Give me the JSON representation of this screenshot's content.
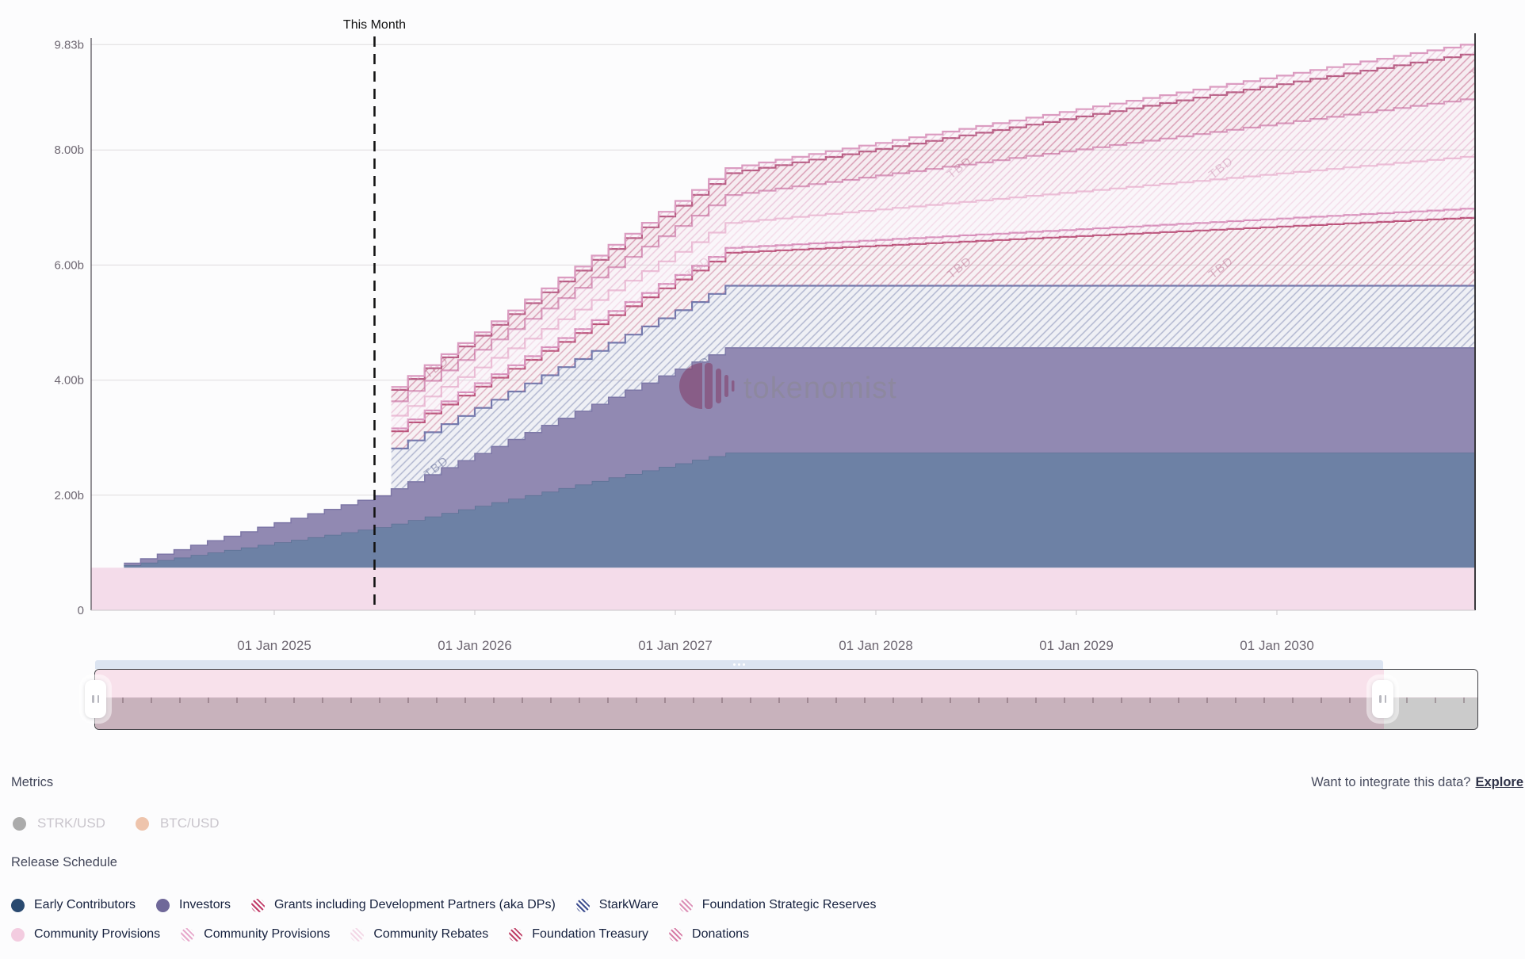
{
  "chart": {
    "this_month_label": "This Month",
    "watermark_text": "tokenomist",
    "tbd_label": "TBD",
    "y_axis": {
      "tick_labels": [
        "9.83b",
        "8.00b",
        "6.00b",
        "4.00b",
        "2.00b",
        "0"
      ],
      "tick_values": [
        9.83,
        8,
        6,
        4,
        2,
        0
      ]
    },
    "x_axis": {
      "tick_labels": [
        "01 Jan 2025",
        "01 Jan 2026",
        "01 Jan 2027",
        "01 Jan 2028",
        "01 Jan 2029",
        "01 Jan 2030"
      ]
    }
  },
  "chart_data": {
    "type": "area",
    "subtype": "stacked-step-area",
    "unit": "tokens (billions)",
    "bar_interval": "monthly",
    "x_start_month": "2024-04",
    "x_months": 81,
    "this_month_index": 15,
    "tbd_start_index": 16,
    "ylim": [
      0,
      9.83
    ],
    "x_tick_month_indices": [
      9,
      21,
      33,
      45,
      57,
      69
    ],
    "series": [
      {
        "name": "Community Provisions",
        "style": "solid",
        "color": "#f4dcea",
        "full_width": true,
        "constant_value": 0.74
      },
      {
        "name": "Early Contributors",
        "style": "solid",
        "color": "#6d81a5",
        "top_border_color": "#5d7195",
        "values": [
          0.044,
          0.088,
          0.132,
          0.176,
          0.22,
          0.264,
          0.308,
          0.352,
          0.396,
          0.44,
          0.484,
          0.528,
          0.572,
          0.616,
          0.66,
          0.704,
          0.766,
          0.827,
          0.889,
          0.951,
          1.013,
          1.074,
          1.136,
          1.198,
          1.259,
          1.321,
          1.383,
          1.444,
          1.506,
          1.568,
          1.629,
          1.691,
          1.753,
          1.814,
          1.876,
          1.938,
          2.0
        ]
      },
      {
        "name": "Investors",
        "style": "solid",
        "color": "#9189b2",
        "top_border_color": "#7d76a6",
        "values": [
          0.034,
          0.068,
          0.102,
          0.136,
          0.17,
          0.204,
          0.238,
          0.272,
          0.306,
          0.34,
          0.374,
          0.408,
          0.442,
          0.476,
          0.51,
          0.544,
          0.605,
          0.666,
          0.726,
          0.787,
          0.848,
          0.909,
          0.97,
          1.03,
          1.091,
          1.152,
          1.213,
          1.274,
          1.334,
          1.395,
          1.456,
          1.517,
          1.578,
          1.638,
          1.699,
          1.76,
          1.82
        ]
      },
      {
        "name": "StarkWare",
        "style": "hatched",
        "start_index": 16,
        "line_color": "rgba(127,136,178,0.55)",
        "bg_color": "rgba(127,136,178,0.10)",
        "top_border_color": "#7079ae",
        "tbd_text_color": "rgba(98,108,150,0.55)",
        "values": [
          0.7,
          0.719,
          0.738,
          0.757,
          0.776,
          0.795,
          0.814,
          0.833,
          0.852,
          0.871,
          0.89,
          0.909,
          0.928,
          0.947,
          0.966,
          0.985,
          1.004,
          1.023,
          1.042,
          1.061,
          1.08
        ]
      },
      {
        "name": "Grants including Development Partners (aka DPs)",
        "style": "hatched",
        "start_index": 16,
        "line_color": "rgba(197,111,144,0.50)",
        "bg_color": "rgba(197,111,144,0.08)",
        "top_border_color": "#bb537a",
        "tbd_text_color": "rgba(190,120,150,0.50)",
        "values": [
          0.3,
          0.314,
          0.328,
          0.341,
          0.355,
          0.369,
          0.383,
          0.396,
          0.41,
          0.424,
          0.438,
          0.451,
          0.465,
          0.479,
          0.493,
          0.506,
          0.52,
          0.534,
          0.548,
          0.561,
          0.575,
          0.589,
          0.603,
          0.616,
          0.63,
          0.644,
          0.658,
          0.671,
          0.685,
          0.699,
          0.713,
          0.726,
          0.74,
          0.754,
          0.768,
          0.781,
          0.795,
          0.809,
          0.823,
          0.836,
          0.85,
          0.864,
          0.878,
          0.891,
          0.905,
          0.919,
          0.933,
          0.946,
          0.96,
          0.974,
          0.988,
          1.001,
          1.015,
          1.029,
          1.043,
          1.056,
          1.07,
          1.084,
          1.098,
          1.111,
          1.125,
          1.139,
          1.153,
          1.166,
          1.18
        ]
      },
      {
        "name": "Community Provisions",
        "style": "hatched",
        "start_index": 16,
        "line_color": "rgba(222,155,195,0.50)",
        "bg_color": "rgba(222,155,195,0.08)",
        "top_border_color": "#d78fba",
        "tbd_text_color": "rgba(205,140,175,0.45)",
        "values": [
          0.05,
          0.052,
          0.053,
          0.055,
          0.057,
          0.059,
          0.06,
          0.062,
          0.064,
          0.065,
          0.067,
          0.069,
          0.07,
          0.072,
          0.074,
          0.076,
          0.077,
          0.079,
          0.081,
          0.082,
          0.084,
          0.086,
          0.087,
          0.089,
          0.091,
          0.093,
          0.094,
          0.096,
          0.098,
          0.099,
          0.101,
          0.103,
          0.104,
          0.106,
          0.108,
          0.11,
          0.111,
          0.113,
          0.115,
          0.116,
          0.118,
          0.12,
          0.121,
          0.123,
          0.125,
          0.127,
          0.128,
          0.13,
          0.132,
          0.133,
          0.135,
          0.137,
          0.138,
          0.14,
          0.142,
          0.144,
          0.145,
          0.147,
          0.149,
          0.15,
          0.152,
          0.154,
          0.155,
          0.157,
          0.159
        ]
      },
      {
        "name": "Community Rebates",
        "style": "hatched",
        "start_index": 16,
        "line_color": "rgba(238,200,221,0.55)",
        "bg_color": "rgba(238,200,221,0.10)",
        "top_border_color": "#ecc0d8",
        "tbd_text_color": "rgba(215,165,190,0.40)",
        "values": [
          0.22,
          0.231,
          0.241,
          0.252,
          0.263,
          0.273,
          0.284,
          0.294,
          0.305,
          0.316,
          0.326,
          0.337,
          0.348,
          0.358,
          0.369,
          0.379,
          0.39,
          0.401,
          0.411,
          0.422,
          0.433,
          0.443,
          0.454,
          0.464,
          0.475,
          0.486,
          0.496,
          0.507,
          0.518,
          0.528,
          0.539,
          0.549,
          0.56,
          0.571,
          0.581,
          0.592,
          0.603,
          0.613,
          0.624,
          0.634,
          0.645,
          0.656,
          0.666,
          0.677,
          0.688,
          0.698,
          0.709,
          0.719,
          0.73,
          0.741,
          0.751,
          0.762,
          0.773,
          0.783,
          0.794,
          0.804,
          0.815,
          0.826,
          0.836,
          0.847,
          0.858,
          0.868,
          0.879,
          0.889,
          0.9
        ]
      },
      {
        "name": "Foundation Strategic Reserves",
        "style": "hatched",
        "start_index": 16,
        "line_color": "rgba(224,162,196,0.50)",
        "bg_color": "rgba(224,162,196,0.10)",
        "top_border_color": "#d99cbf",
        "tbd_text_color": "rgba(200,135,170,0.45)",
        "values": [
          0.25,
          0.262,
          0.273,
          0.285,
          0.297,
          0.309,
          0.32,
          0.332,
          0.344,
          0.355,
          0.367,
          0.379,
          0.391,
          0.402,
          0.414,
          0.426,
          0.438,
          0.449,
          0.461,
          0.473,
          0.484,
          0.496,
          0.508,
          0.52,
          0.531,
          0.543,
          0.555,
          0.566,
          0.578,
          0.59,
          0.602,
          0.613,
          0.625,
          0.637,
          0.648,
          0.66,
          0.672,
          0.684,
          0.695,
          0.707,
          0.719,
          0.73,
          0.742,
          0.754,
          0.766,
          0.777,
          0.789,
          0.801,
          0.813,
          0.824,
          0.836,
          0.848,
          0.859,
          0.871,
          0.883,
          0.895,
          0.906,
          0.918,
          0.93,
          0.941,
          0.953,
          0.965,
          0.977,
          0.988,
          1.0
        ]
      },
      {
        "name": "Foundation Treasury",
        "style": "hatched",
        "start_index": 16,
        "line_color": "rgba(193,95,133,0.55)",
        "bg_color": "rgba(193,95,133,0.10)",
        "top_border_color": "#b75c83",
        "tbd_text_color": "rgba(185,110,140,0.50)",
        "values": [
          0.2,
          0.209,
          0.218,
          0.227,
          0.236,
          0.245,
          0.254,
          0.263,
          0.273,
          0.282,
          0.291,
          0.3,
          0.309,
          0.318,
          0.327,
          0.336,
          0.345,
          0.354,
          0.363,
          0.372,
          0.381,
          0.39,
          0.399,
          0.408,
          0.418,
          0.427,
          0.436,
          0.445,
          0.454,
          0.463,
          0.472,
          0.481,
          0.49,
          0.499,
          0.508,
          0.517,
          0.526,
          0.535,
          0.544,
          0.553,
          0.563,
          0.572,
          0.581,
          0.59,
          0.599,
          0.608,
          0.617,
          0.626,
          0.635,
          0.644,
          0.653,
          0.662,
          0.671,
          0.68,
          0.689,
          0.698,
          0.708,
          0.717,
          0.726,
          0.735,
          0.744,
          0.753,
          0.762,
          0.771,
          0.78
        ]
      },
      {
        "name": "Donations",
        "style": "hatched",
        "start_index": 16,
        "line_color": "rgba(226,167,199,0.50)",
        "bg_color": "rgba(226,167,199,0.08)",
        "top_border_color": "#db9cc1",
        "tbd_text_color": "rgba(205,140,175,0.45)",
        "values": [
          0.05,
          0.052,
          0.054,
          0.056,
          0.058,
          0.059,
          0.061,
          0.063,
          0.065,
          0.067,
          0.069,
          0.071,
          0.073,
          0.074,
          0.076,
          0.078,
          0.08,
          0.082,
          0.084,
          0.086,
          0.088,
          0.089,
          0.091,
          0.093,
          0.095,
          0.097,
          0.099,
          0.101,
          0.103,
          0.104,
          0.106,
          0.108,
          0.11,
          0.112,
          0.114,
          0.116,
          0.118,
          0.119,
          0.121,
          0.123,
          0.125,
          0.127,
          0.129,
          0.131,
          0.133,
          0.134,
          0.136,
          0.138,
          0.14,
          0.142,
          0.144,
          0.146,
          0.148,
          0.149,
          0.151,
          0.153,
          0.155,
          0.157,
          0.159,
          0.161,
          0.163,
          0.164,
          0.166,
          0.168,
          0.17
        ]
      }
    ]
  },
  "metrics": {
    "heading": "Metrics",
    "items": [
      {
        "label": "STRK/USD",
        "dot_color": "#ababab",
        "enabled": false
      },
      {
        "label": "BTC/USD",
        "dot_color": "#eec4ac",
        "enabled": false
      }
    ]
  },
  "integrate": {
    "prompt": "Want to integrate this data?",
    "link_label": "Explore"
  },
  "release_schedule": {
    "heading": "Release Schedule",
    "rows": [
      [
        {
          "label": "Early Contributors",
          "swatch": "solid",
          "color": "#2a4a70"
        },
        {
          "label": "Investors",
          "swatch": "solid",
          "color": "#6f6899"
        },
        {
          "label": "Grants including Development Partners (aka DPs)",
          "swatch": "hatch",
          "color": "#c23c68"
        },
        {
          "label": "StarkWare",
          "swatch": "hatch",
          "color": "#3c4c8e"
        },
        {
          "label": "Foundation Strategic Reserves",
          "swatch": "hatch",
          "color": "#dc8fb6"
        }
      ],
      [
        {
          "label": "Community Provisions",
          "swatch": "solid",
          "color": "#f3cce0"
        },
        {
          "label": "Community Provisions",
          "swatch": "hatch",
          "color": "#e7a8cb"
        },
        {
          "label": "Community Rebates",
          "swatch": "hatch",
          "color": "#f3d7e6"
        },
        {
          "label": "Foundation Treasury",
          "swatch": "hatch",
          "color": "#bf3f66"
        },
        {
          "label": "Donations",
          "swatch": "hatch",
          "color": "#d77ca6"
        }
      ]
    ]
  },
  "navigator": {
    "strip_color": "#dce4f1",
    "selected_top_color": "#f8e1eb",
    "selected_bottom_color": "#c8b2bc",
    "unselected_bottom_color": "#cbcbcb"
  }
}
